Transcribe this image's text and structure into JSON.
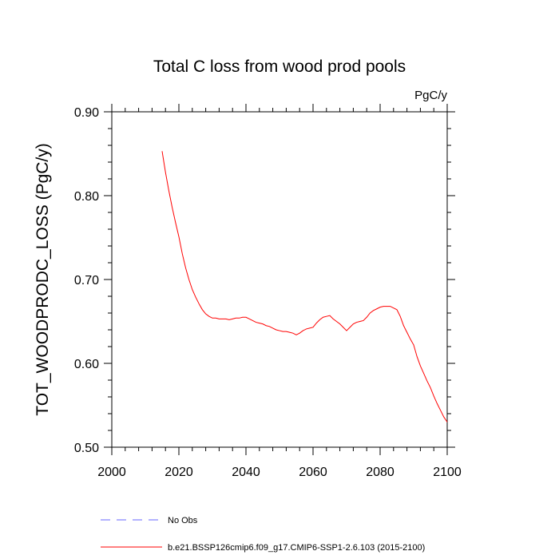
{
  "chart_data": {
    "type": "line",
    "title": "Total C loss from wood prod pools",
    "units_label": "PgC/y",
    "ylabel": "TOT_WOODPRODC_LOSS  (PgC/y)",
    "xlabel": "",
    "xlim": [
      2000,
      2100
    ],
    "ylim": [
      0.5,
      0.9
    ],
    "xticks": [
      2000,
      2020,
      2040,
      2060,
      2080,
      2100
    ],
    "xtick_labels": [
      "2000",
      "2020",
      "2040",
      "2060",
      "2080",
      "2100"
    ],
    "yticks": [
      0.5,
      0.6,
      0.7,
      0.8,
      0.9
    ],
    "ytick_labels": [
      "0.50",
      "0.60",
      "0.70",
      "0.80",
      "0.90"
    ],
    "grid": false,
    "legend_position": "bottom-left",
    "series": [
      {
        "name": "b.e21.BSSP126cmip6.f09_g17.CMIP6-SSP1-2.6.103 (2015-2100)",
        "color": "#ff0000",
        "style": "solid",
        "x": [
          2015,
          2016,
          2017,
          2018,
          2019,
          2020,
          2021,
          2022,
          2023,
          2024,
          2025,
          2026,
          2027,
          2028,
          2029,
          2030,
          2031,
          2032,
          2033,
          2034,
          2035,
          2036,
          2037,
          2038,
          2039,
          2040,
          2041,
          2042,
          2043,
          2044,
          2045,
          2046,
          2047,
          2048,
          2049,
          2050,
          2051,
          2052,
          2053,
          2054,
          2055,
          2056,
          2057,
          2058,
          2059,
          2060,
          2061,
          2062,
          2063,
          2064,
          2065,
          2066,
          2067,
          2068,
          2069,
          2070,
          2071,
          2072,
          2073,
          2074,
          2075,
          2076,
          2077,
          2078,
          2079,
          2080,
          2081,
          2082,
          2083,
          2084,
          2085,
          2086,
          2087,
          2088,
          2089,
          2090,
          2091,
          2092,
          2093,
          2094,
          2095,
          2096,
          2097,
          2098,
          2099,
          2100
        ],
        "y": [
          0.853,
          0.828,
          0.806,
          0.786,
          0.768,
          0.751,
          0.731,
          0.714,
          0.7,
          0.688,
          0.679,
          0.671,
          0.664,
          0.659,
          0.656,
          0.654,
          0.654,
          0.653,
          0.653,
          0.653,
          0.652,
          0.653,
          0.654,
          0.654,
          0.655,
          0.655,
          0.653,
          0.651,
          0.649,
          0.648,
          0.647,
          0.645,
          0.644,
          0.642,
          0.64,
          0.639,
          0.638,
          0.638,
          0.637,
          0.636,
          0.634,
          0.636,
          0.639,
          0.641,
          0.642,
          0.643,
          0.648,
          0.652,
          0.655,
          0.656,
          0.657,
          0.653,
          0.65,
          0.647,
          0.643,
          0.639,
          0.643,
          0.647,
          0.649,
          0.65,
          0.651,
          0.655,
          0.66,
          0.663,
          0.665,
          0.667,
          0.668,
          0.668,
          0.668,
          0.666,
          0.664,
          0.656,
          0.645,
          0.637,
          0.629,
          0.622,
          0.608,
          0.597,
          0.588,
          0.579,
          0.571,
          0.561,
          0.552,
          0.544,
          0.536,
          0.53
        ]
      },
      {
        "name": "No Obs",
        "color": "#6666ff",
        "style": "dashed",
        "x": [],
        "y": []
      }
    ]
  }
}
